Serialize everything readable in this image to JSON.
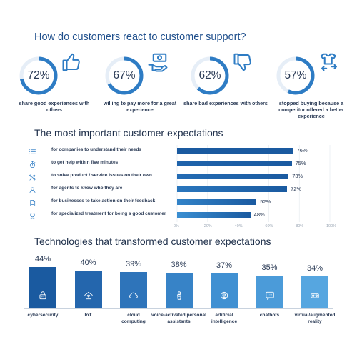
{
  "section1": {
    "title": "How do customers react to customer support?",
    "stats": [
      {
        "percent": "72%",
        "value": 72,
        "label": "share good experiences with others",
        "icon": "thumbs-up-icon"
      },
      {
        "percent": "67%",
        "value": 67,
        "label": "willing to pay more for a great experience",
        "icon": "money-hand-icon"
      },
      {
        "percent": "62%",
        "value": 62,
        "label": "share bad experiences with others",
        "icon": "thumbs-down-icon"
      },
      {
        "percent": "57%",
        "value": 57,
        "label": "stopped buying because a competitor offered a better experience",
        "icon": "tshirt-swap-icon"
      }
    ]
  },
  "section2": {
    "title": "The most important customer expectations",
    "axis_ticks": [
      "0%",
      "20%",
      "40%",
      "60%",
      "80%",
      "100%"
    ]
  },
  "section3": {
    "title": "Technologies that transformed customer expectations"
  },
  "colors": {
    "dark_blue": "#1a5aa0",
    "mid_blue": "#2e7cc4",
    "light_blue": "#5aa8e2",
    "ring_bg": "#e6eef7"
  },
  "chart_data": [
    {
      "type": "bar",
      "orientation": "horizontal",
      "title": "The most important customer expectations",
      "categories": [
        "for companies to understand their needs",
        "to get help within five minutes",
        "to solve product / service issues on their own",
        "for agents to know who they are",
        "for businesses to take action on their feedback",
        "for specialized treatment for being a good customer"
      ],
      "values": [
        76,
        75,
        73,
        72,
        52,
        48
      ],
      "value_labels": [
        "76%",
        "75%",
        "73%",
        "72%",
        "52%",
        "48%"
      ],
      "icons": [
        "list-icon",
        "stopwatch-icon",
        "tools-icon",
        "person-icon",
        "document-icon",
        "badge-icon"
      ],
      "xlim": [
        0,
        100
      ],
      "xticks": [
        "0%",
        "20%",
        "40%",
        "60%",
        "80%",
        "100%"
      ],
      "grid": true
    },
    {
      "type": "bar",
      "orientation": "vertical",
      "title": "Technologies that transformed customer expectations",
      "categories": [
        "cybersecurity",
        "IoT",
        "cloud computing",
        "voice-activated personal assistants",
        "artificial intelligence",
        "chatbots",
        "virtual/augmented reality"
      ],
      "values": [
        44,
        40,
        39,
        38,
        37,
        35,
        34
      ],
      "value_labels": [
        "44%",
        "40%",
        "39%",
        "38%",
        "37%",
        "35%",
        "34%"
      ],
      "icons": [
        "lock-icon",
        "iot-house-icon",
        "cloud-icon",
        "voice-assistant-icon",
        "brain-icon",
        "chat-bubble-icon",
        "vr-headset-icon"
      ],
      "ylim": [
        0,
        44
      ]
    }
  ]
}
